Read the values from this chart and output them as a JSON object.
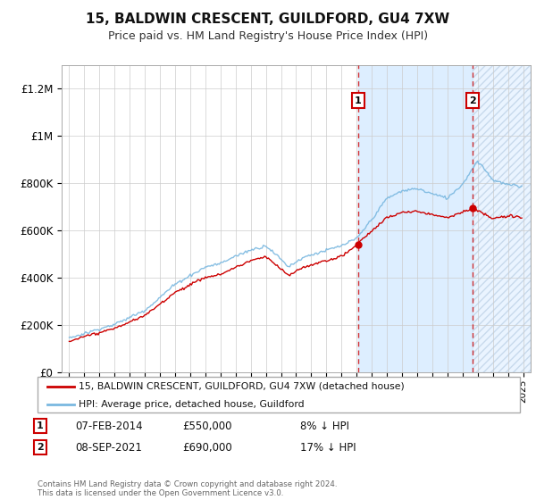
{
  "title": "15, BALDWIN CRESCENT, GUILDFORD, GU4 7XW",
  "subtitle": "Price paid vs. HM Land Registry's House Price Index (HPI)",
  "legend_line1": "15, BALDWIN CRESCENT, GUILDFORD, GU4 7XW (detached house)",
  "legend_line2": "HPI: Average price, detached house, Guildford",
  "transaction1_date": "07-FEB-2014",
  "transaction1_price": 550000,
  "transaction1_label": "8% ↓ HPI",
  "transaction1_year": 2014.1,
  "transaction2_date": "08-SEP-2021",
  "transaction2_price": 690000,
  "transaction2_label": "17% ↓ HPI",
  "transaction2_year": 2021.67,
  "footer": "Contains HM Land Registry data © Crown copyright and database right 2024.\nThis data is licensed under the Open Government Licence v3.0.",
  "xlim": [
    1994.5,
    2025.5
  ],
  "ylim": [
    0,
    1300000
  ],
  "hpi_color": "#7ab8e0",
  "price_color": "#cc0000",
  "background_color": "#ffffff",
  "shade_color": "#ddeeff",
  "marker_color": "#cc0000"
}
